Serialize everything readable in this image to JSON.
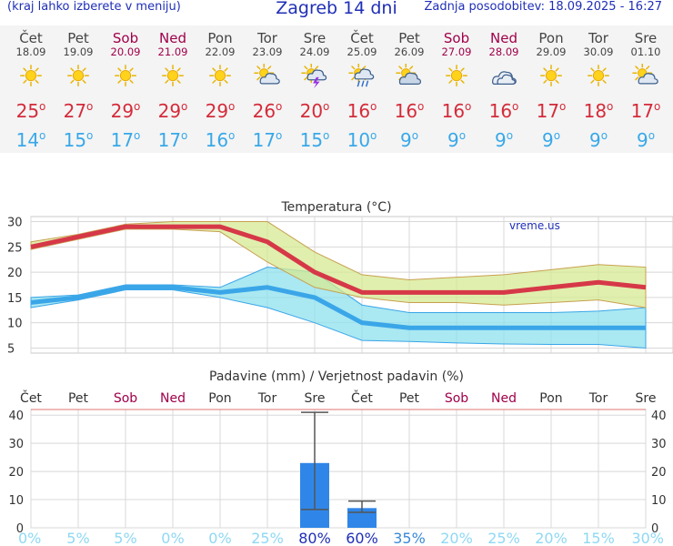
{
  "header": {
    "note": "(kraj lahko izberete v meniju)",
    "title": "Zagreb 14 dni",
    "updated": "Zadnja posodobitev: 18.09.2025 - 16:27"
  },
  "days": [
    {
      "name": "Čet",
      "date": "18.09",
      "weekend": false,
      "icon": "sun-icon",
      "max": "25",
      "min": "14"
    },
    {
      "name": "Pet",
      "date": "19.09",
      "weekend": false,
      "icon": "sun-icon",
      "max": "27",
      "min": "15"
    },
    {
      "name": "Sob",
      "date": "20.09",
      "weekend": true,
      "icon": "sun-icon",
      "max": "29",
      "min": "17"
    },
    {
      "name": "Ned",
      "date": "21.09",
      "weekend": true,
      "icon": "sun-icon",
      "max": "29",
      "min": "17"
    },
    {
      "name": "Pon",
      "date": "22.09",
      "weekend": false,
      "icon": "sun-icon",
      "max": "29",
      "min": "16"
    },
    {
      "name": "Tor",
      "date": "23.09",
      "weekend": false,
      "icon": "partly-cloudy-icon",
      "max": "26",
      "min": "17"
    },
    {
      "name": "Sre",
      "date": "24.09",
      "weekend": false,
      "icon": "thunderstorm-icon",
      "max": "20",
      "min": "15"
    },
    {
      "name": "Čet",
      "date": "25.09",
      "weekend": false,
      "icon": "rain-icon",
      "max": "16",
      "min": "10"
    },
    {
      "name": "Pet",
      "date": "26.09",
      "weekend": false,
      "icon": "cloudy-icon",
      "max": "16",
      "min": "9"
    },
    {
      "name": "Sob",
      "date": "27.09",
      "weekend": true,
      "icon": "sun-icon",
      "max": "16",
      "min": "9"
    },
    {
      "name": "Ned",
      "date": "28.09",
      "weekend": true,
      "icon": "overcast-icon",
      "max": "16",
      "min": "9"
    },
    {
      "name": "Pon",
      "date": "29.09",
      "weekend": false,
      "icon": "sun-icon",
      "max": "17",
      "min": "9"
    },
    {
      "name": "Tor",
      "date": "30.09",
      "weekend": false,
      "icon": "sun-icon",
      "max": "18",
      "min": "9"
    },
    {
      "name": "Sre",
      "date": "01.10",
      "weekend": false,
      "icon": "partly-cloudy-icon",
      "max": "17",
      "min": "9"
    }
  ],
  "colors": {
    "max_line": "#d63848",
    "min_line": "#3aa6e8",
    "max_band": "#d6ea92",
    "min_band": "#8ee0ee",
    "bar": "#2f86e8",
    "weekend": "#a0004a",
    "prob_low": "#8fd8f4",
    "prob_high": "#1f2fb7"
  },
  "chart_data": [
    {
      "type": "line",
      "title": "Temperatura (°C)",
      "watermark": "vreme.us",
      "categories": [
        "Čet",
        "Pet",
        "Sob",
        "Ned",
        "Pon",
        "Tor",
        "Sre",
        "Čet",
        "Pet",
        "Sob",
        "Ned",
        "Pon",
        "Tor",
        "Sre"
      ],
      "ylim": [
        4,
        31
      ],
      "yticks": [
        5,
        10,
        15,
        20,
        25,
        30
      ],
      "grid": true,
      "series": [
        {
          "name": "",
          "role": "max",
          "values": [
            25,
            27,
            29,
            29,
            29,
            26,
            20,
            16,
            16,
            16,
            16,
            17,
            18,
            17
          ]
        },
        {
          "name": "",
          "role": "min",
          "values": [
            14,
            15,
            17,
            17,
            16,
            17,
            15,
            10,
            9,
            9,
            9,
            9,
            9,
            9
          ]
        }
      ],
      "max_band": {
        "upper": [
          26,
          27.5,
          29.5,
          30,
          30,
          30,
          24,
          19.5,
          18.5,
          19,
          19.5,
          20.5,
          21.5,
          21
        ],
        "lower": [
          24.5,
          26.5,
          28.5,
          28.5,
          28,
          22,
          17,
          15,
          14,
          14,
          13.5,
          14,
          14.5,
          13
        ]
      },
      "min_band": {
        "upper": [
          15,
          15.5,
          17.5,
          17.5,
          17,
          21,
          20,
          13.5,
          12,
          12,
          12,
          12,
          12.3,
          13
        ],
        "lower": [
          13,
          14.5,
          16.5,
          16.5,
          15,
          13,
          10,
          6.5,
          6.3,
          6,
          5.8,
          5.7,
          5.7,
          5
        ]
      }
    },
    {
      "type": "bar",
      "title": "Padavine (mm) / Verjetnost padavin (%)",
      "categories": [
        "Čet",
        "Pet",
        "Sob",
        "Ned",
        "Pon",
        "Tor",
        "Sre",
        "Čet",
        "Pet",
        "Sob",
        "Ned",
        "Pon",
        "Tor",
        "Sre"
      ],
      "values": [
        0,
        0,
        0,
        0,
        0,
        0,
        23,
        7,
        0,
        0,
        0,
        0,
        0,
        0
      ],
      "error_high": [
        null,
        null,
        null,
        null,
        null,
        null,
        41,
        9.5,
        null,
        null,
        null,
        null,
        null,
        null
      ],
      "error_low": [
        null,
        null,
        null,
        null,
        null,
        null,
        6.5,
        5.5,
        null,
        null,
        null,
        null,
        null,
        null
      ],
      "probability": [
        "0%",
        "5%",
        "5%",
        "0%",
        "0%",
        "25%",
        "80%",
        "60%",
        "35%",
        "20%",
        "25%",
        "20%",
        "15%",
        "30%"
      ],
      "ylim": [
        0,
        42
      ],
      "yticks": [
        0,
        10,
        20,
        30,
        40
      ],
      "grid": true
    }
  ]
}
